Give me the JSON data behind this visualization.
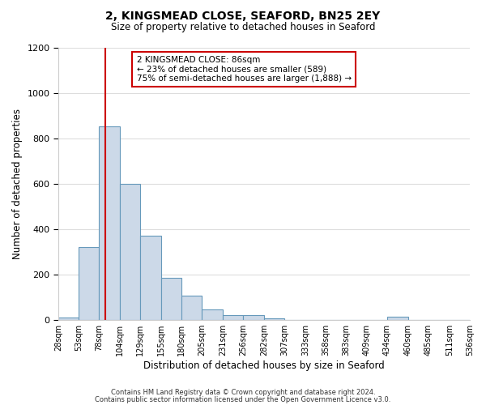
{
  "title": "2, KINGSMEAD CLOSE, SEAFORD, BN25 2EY",
  "subtitle": "Size of property relative to detached houses in Seaford",
  "xlabel": "Distribution of detached houses by size in Seaford",
  "ylabel": "Number of detached properties",
  "bin_edges": [
    28,
    53,
    78,
    104,
    129,
    155,
    180,
    205,
    231,
    256,
    282,
    307,
    333,
    358,
    383,
    409,
    434,
    460,
    485,
    511,
    536
  ],
  "bin_counts": [
    10,
    320,
    855,
    600,
    370,
    185,
    105,
    45,
    22,
    20,
    5,
    0,
    0,
    0,
    0,
    0,
    15,
    0,
    0,
    0
  ],
  "bar_facecolor": "#ccd9e8",
  "bar_edgecolor": "#6699bb",
  "property_size": 86,
  "vline_color": "#cc0000",
  "annotation_text": "2 KINGSMEAD CLOSE: 86sqm\n← 23% of detached houses are smaller (589)\n75% of semi-detached houses are larger (1,888) →",
  "annotation_boxcolor": "white",
  "annotation_boxedge": "#cc0000",
  "ylim": [
    0,
    1200
  ],
  "yticks": [
    0,
    200,
    400,
    600,
    800,
    1000,
    1200
  ],
  "footer_line1": "Contains HM Land Registry data © Crown copyright and database right 2024.",
  "footer_line2": "Contains public sector information licensed under the Open Government Licence v3.0.",
  "bg_color": "#ffffff",
  "plot_bg_color": "#ffffff",
  "grid_color": "#dddddd"
}
